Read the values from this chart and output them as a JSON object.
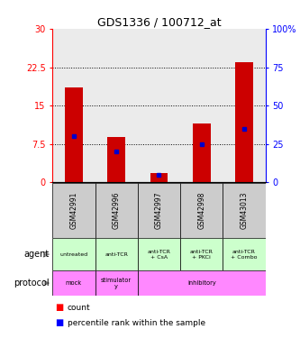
{
  "title": "GDS1336 / 100712_at",
  "samples": [
    "GSM42991",
    "GSM42996",
    "GSM42997",
    "GSM42998",
    "GSM43013"
  ],
  "counts": [
    18.5,
    8.8,
    1.8,
    11.5,
    23.5
  ],
  "percentile_ranks": [
    30,
    20,
    5,
    25,
    35
  ],
  "ylim_left": [
    0,
    30
  ],
  "ylim_right": [
    0,
    100
  ],
  "yticks_left": [
    0,
    7.5,
    15,
    22.5,
    30
  ],
  "yticks_right": [
    0,
    25,
    50,
    75,
    100
  ],
  "ytick_labels_left": [
    "0",
    "7.5",
    "15",
    "22.5",
    "30"
  ],
  "ytick_labels_right": [
    "0",
    "25",
    "50",
    "75",
    "100%"
  ],
  "agent_labels": [
    "untreated",
    "anti-TCR",
    "anti-TCR\n+ CsA",
    "anti-TCR\n+ PKCi",
    "anti-TCR\n+ Combo"
  ],
  "protocol_data": [
    [
      "mock",
      1
    ],
    [
      "stimulator\ny",
      1
    ],
    [
      "inhibitory",
      3
    ]
  ],
  "gsm_bg_color": "#cccccc",
  "agent_bg_color": "#ccffcc",
  "protocol_bg_color": "#ff88ff",
  "bar_color": "#cc0000",
  "pct_color": "#0000cc",
  "grid_line_color": "#000000",
  "chart_bg_color": "#ebebeb"
}
